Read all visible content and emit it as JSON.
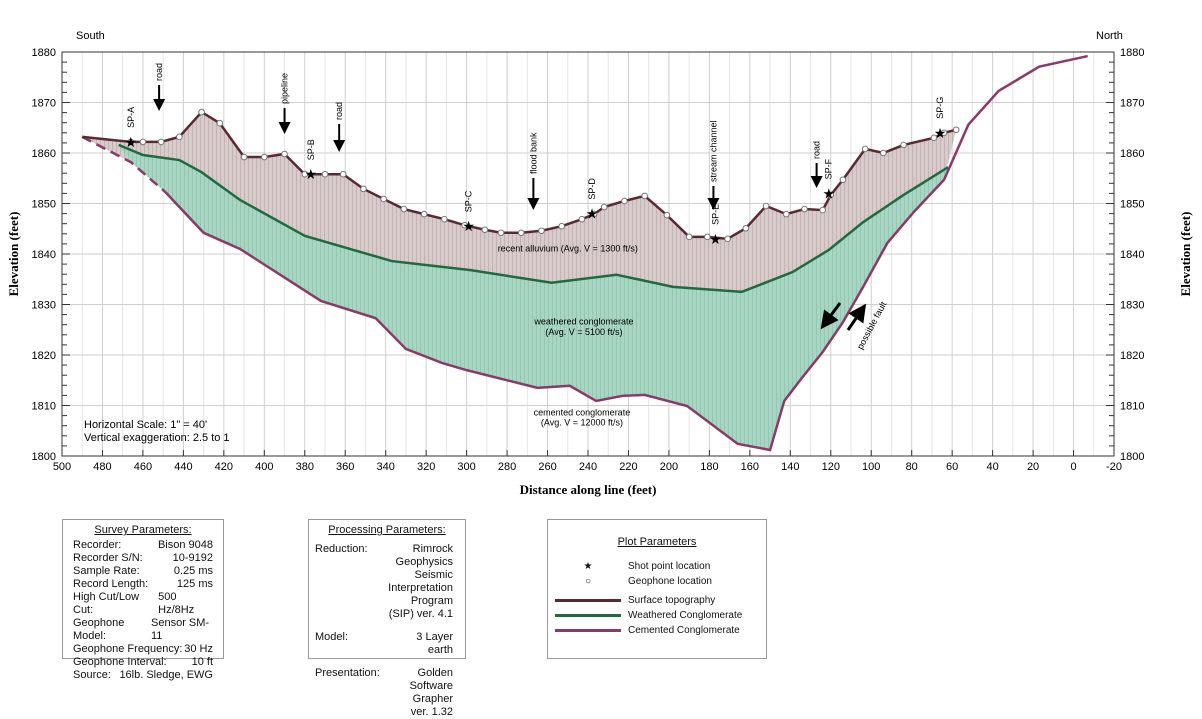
{
  "chart_data": {
    "type": "line",
    "x_label": "Distance along line (feet)",
    "y_label": "Elevation (feet)",
    "xlim": [
      500,
      -20
    ],
    "ylim": [
      1800,
      1880
    ],
    "x_ticks": [
      500,
      480,
      460,
      440,
      420,
      400,
      380,
      360,
      340,
      320,
      300,
      280,
      260,
      240,
      220,
      200,
      180,
      160,
      140,
      120,
      100,
      80,
      60,
      40,
      20,
      0,
      -20
    ],
    "y_ticks": [
      1800,
      1810,
      1820,
      1830,
      1840,
      1850,
      1860,
      1870,
      1880
    ],
    "corner_labels": {
      "left": "South",
      "right": "North"
    },
    "series": [
      {
        "name": "Surface topography",
        "color": "#5a2a30",
        "x": [
          490,
          466,
          460,
          451,
          442,
          431,
          422,
          410,
          400,
          390,
          380,
          370,
          361,
          351,
          341,
          331,
          321,
          311,
          301,
          291,
          283,
          273,
          263,
          253,
          243,
          237,
          232,
          222,
          212,
          201,
          190,
          181,
          171,
          162,
          152,
          142,
          133,
          124,
          120,
          114,
          103,
          94,
          84,
          69,
          64,
          58
        ],
        "y": [
          1863.2,
          1862.2,
          1862.2,
          1862.2,
          1863.2,
          1868.1,
          1865.9,
          1859.2,
          1859.2,
          1859.8,
          1855.8,
          1855.8,
          1855.8,
          1852.9,
          1850.9,
          1848.9,
          1847.9,
          1846.9,
          1845.7,
          1844.8,
          1844.2,
          1844.2,
          1844.6,
          1845.5,
          1846.9,
          1847.9,
          1849.3,
          1850.5,
          1851.5,
          1847.7,
          1843.4,
          1843.4,
          1843.0,
          1845.1,
          1849.5,
          1847.9,
          1848.9,
          1848.7,
          1851.7,
          1854.7,
          1860.8,
          1860.0,
          1861.6,
          1863.0,
          1864.0,
          1864.6
        ]
      },
      {
        "name": "Weathered Conglomerate",
        "color": "#1f6b40",
        "x": [
          472,
          460,
          442,
          431,
          412,
          380,
          337,
          298,
          258,
          226,
          198,
          164,
          139,
          121,
          104,
          84,
          62
        ],
        "y": [
          1861.6,
          1859.6,
          1858.6,
          1856.2,
          1850.7,
          1843.6,
          1838.6,
          1836.8,
          1834.3,
          1835.9,
          1833.5,
          1832.5,
          1836.4,
          1840.8,
          1846.3,
          1851.7,
          1857.2
        ]
      },
      {
        "name": "Cemented Conglomerate",
        "color": "#8a3a68",
        "x": [
          490,
          466,
          449,
          430,
          412,
          372,
          345,
          330,
          312,
          300,
          265,
          249,
          236,
          223,
          212,
          191,
          166,
          150,
          143,
          134,
          124,
          114,
          104,
          92,
          79,
          64,
          52,
          37,
          17,
          -7
        ],
        "y": [
          1863.2,
          1858.2,
          1852.3,
          1844.2,
          1841.0,
          1830.7,
          1827.3,
          1821.2,
          1818.4,
          1817.0,
          1813.5,
          1813.9,
          1810.9,
          1811.9,
          1812.1,
          1809.9,
          1802.4,
          1801.2,
          1810.9,
          1815.6,
          1820.6,
          1826.5,
          1833.5,
          1842.2,
          1848.3,
          1854.7,
          1865.6,
          1872.3,
          1877.1,
          1879.2
        ]
      }
    ],
    "shot_points": [
      {
        "label": "SP-A",
        "x": 466,
        "y": 1862.2
      },
      {
        "label": "SP-B",
        "x": 377,
        "y": 1855.8
      },
      {
        "label": "SP-C",
        "x": 299,
        "y": 1845.5
      },
      {
        "label": "SP-D",
        "x": 238,
        "y": 1848.0
      },
      {
        "label": "SP-E",
        "x": 177,
        "y": 1843.0
      },
      {
        "label": "SP-F",
        "x": 121,
        "y": 1852.0
      },
      {
        "label": "SP-G",
        "x": 66,
        "y": 1864.0
      }
    ],
    "features": [
      {
        "label": "road",
        "x": 452
      },
      {
        "label": "pipeline",
        "x": 390
      },
      {
        "label": "road",
        "x": 363
      },
      {
        "label": "flood bank",
        "x": 267
      },
      {
        "label": "stream channel",
        "x": 178
      },
      {
        "label": "road",
        "x": 127
      }
    ],
    "layer_labels": [
      {
        "text": "recent alluvium  (Avg. V = 1300 ft/s)",
        "x": 250,
        "y": 1840.5
      },
      {
        "text": "weathered conglomerate",
        "x": 242,
        "y": 1826
      },
      {
        "text": "(Avg. V = 5100 ft/s)",
        "x": 242,
        "y": 1824
      },
      {
        "text": "cemented conglomerate",
        "x": 243,
        "y": 1808
      },
      {
        "text": "(Avg. V = 12000 ft/s)",
        "x": 243,
        "y": 1806
      }
    ],
    "fault_label": "possible fault",
    "scale_notes": [
      "Horizontal Scale:  1\" = 40'",
      "Vertical exaggeration:  2.5 to 1"
    ]
  },
  "survey": {
    "title": "Survey Parameters:",
    "rows": [
      [
        "Recorder:",
        "Bison 9048"
      ],
      [
        "Recorder S/N:",
        "10-9192"
      ],
      [
        "Sample Rate:",
        "0.25 ms"
      ],
      [
        "Record Length:",
        "125 ms"
      ],
      [
        "High Cut/Low Cut:",
        "500 Hz/8Hz"
      ],
      [
        "Geophone Model:",
        "Sensor SM-11"
      ],
      [
        "Geophone Frequency:",
        "30 Hz"
      ],
      [
        "Geophone Interval:",
        "10 ft"
      ],
      [
        "Source:",
        "16lb. Sledge,  EWG"
      ]
    ]
  },
  "processing": {
    "title": "Processing Parameters:",
    "rows": [
      [
        "Reduction:",
        "Rimrock Geophysics\nSeismic Interpretation\nProgram  (SIP) ver. 4.1"
      ],
      [
        "Model:",
        "3 Layer earth"
      ],
      [
        "Presentation:",
        "Golden Software\nGrapher ver. 1.32"
      ]
    ]
  },
  "plot_params": {
    "title": "Plot Parameters",
    "shot": "Shot point location",
    "geophone": "Geophone location",
    "surface": "Surface topography",
    "weathered": "Weathered Conglomerate",
    "cemented": "Cemented Conglomerate",
    "colors": {
      "surface": "#5a2a30",
      "weathered": "#1f6b40",
      "cemented": "#8a3a68"
    }
  }
}
